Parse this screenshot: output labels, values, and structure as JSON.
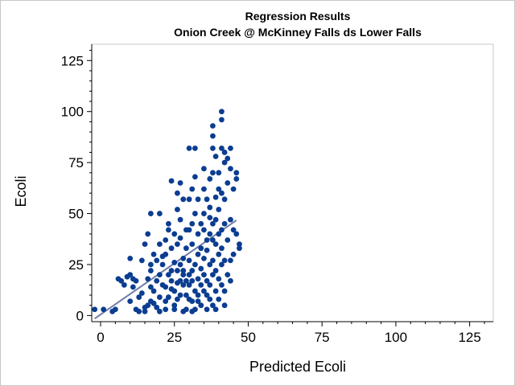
{
  "chart_data": {
    "type": "scatter",
    "title": "Regression Results",
    "subtitle": "Onion Creek @ McKinney Falls ds Lower Falls",
    "xlabel": "Predicted Ecoli",
    "ylabel": "Ecoli",
    "xlim": [
      -3,
      133
    ],
    "ylim": [
      -3,
      133
    ],
    "xticks": [
      0,
      25,
      50,
      75,
      100,
      125
    ],
    "yticks": [
      0,
      25,
      50,
      75,
      100,
      125
    ],
    "grid": false,
    "legend": "none",
    "colors": {
      "points": "#0b3d91",
      "fit_line": "#6e7ea8",
      "axis": "#000000",
      "frame": "#c8c8c8"
    },
    "regression_line": {
      "x": [
        -2,
        46
      ],
      "y": [
        -1.5,
        46.7
      ]
    },
    "series": [
      {
        "points": [
          [
            -2,
            3
          ],
          [
            1,
            3
          ],
          [
            4,
            2
          ],
          [
            5,
            3
          ],
          [
            6,
            18
          ],
          [
            7,
            17
          ],
          [
            8,
            15
          ],
          [
            9,
            19
          ],
          [
            10,
            7
          ],
          [
            10,
            28
          ],
          [
            10,
            20
          ],
          [
            11,
            18
          ],
          [
            11,
            14
          ],
          [
            12,
            3
          ],
          [
            12,
            17
          ],
          [
            13,
            2
          ],
          [
            13,
            9
          ],
          [
            14,
            27
          ],
          [
            14,
            11
          ],
          [
            15,
            4
          ],
          [
            15,
            35
          ],
          [
            15,
            2
          ],
          [
            16,
            5
          ],
          [
            16,
            40
          ],
          [
            16,
            18
          ],
          [
            17,
            14
          ],
          [
            17,
            22
          ],
          [
            17,
            25
          ],
          [
            17,
            7
          ],
          [
            17,
            50
          ],
          [
            18,
            12
          ],
          [
            18,
            30
          ],
          [
            18,
            6
          ],
          [
            19,
            4
          ],
          [
            19,
            17
          ],
          [
            19,
            27
          ],
          [
            20,
            2
          ],
          [
            20,
            50
          ],
          [
            20,
            35
          ],
          [
            20,
            20
          ],
          [
            20,
            9
          ],
          [
            21,
            29
          ],
          [
            21,
            15
          ],
          [
            21,
            25
          ],
          [
            22,
            14
          ],
          [
            22,
            7
          ],
          [
            22,
            37
          ],
          [
            22,
            30
          ],
          [
            22,
            3
          ],
          [
            23,
            20
          ],
          [
            23,
            45
          ],
          [
            23,
            42
          ],
          [
            23,
            9
          ],
          [
            24,
            66
          ],
          [
            24,
            22
          ],
          [
            24,
            17
          ],
          [
            24,
            33
          ],
          [
            24,
            13
          ],
          [
            25,
            12
          ],
          [
            25,
            26
          ],
          [
            25,
            3
          ],
          [
            25,
            40
          ],
          [
            25,
            5
          ],
          [
            26,
            22
          ],
          [
            26,
            16
          ],
          [
            26,
            52
          ],
          [
            26,
            60
          ],
          [
            26,
            35
          ],
          [
            26,
            8
          ],
          [
            27,
            25
          ],
          [
            27,
            65
          ],
          [
            27,
            38
          ],
          [
            27,
            47
          ],
          [
            27,
            17
          ],
          [
            27,
            10
          ],
          [
            28,
            15
          ],
          [
            28,
            57
          ],
          [
            28,
            28
          ],
          [
            28,
            2
          ],
          [
            28,
            20
          ],
          [
            28,
            22
          ],
          [
            29,
            33
          ],
          [
            29,
            42
          ],
          [
            29,
            17
          ],
          [
            29,
            10
          ],
          [
            29,
            3
          ],
          [
            30,
            27
          ],
          [
            30,
            42
          ],
          [
            30,
            57
          ],
          [
            30,
            82
          ],
          [
            30,
            15
          ],
          [
            30,
            8
          ],
          [
            30,
            20
          ],
          [
            31,
            2
          ],
          [
            31,
            35
          ],
          [
            31,
            22
          ],
          [
            31,
            62
          ],
          [
            31,
            45
          ],
          [
            31,
            17
          ],
          [
            31,
            7
          ],
          [
            32,
            50
          ],
          [
            32,
            25
          ],
          [
            32,
            82
          ],
          [
            32,
            68
          ],
          [
            32,
            12
          ],
          [
            32,
            3
          ],
          [
            33,
            40
          ],
          [
            33,
            30
          ],
          [
            33,
            57
          ],
          [
            33,
            18
          ],
          [
            33,
            10
          ],
          [
            33,
            7
          ],
          [
            34,
            33
          ],
          [
            34,
            45
          ],
          [
            34,
            23
          ],
          [
            34,
            15
          ],
          [
            34,
            5
          ],
          [
            35,
            62
          ],
          [
            35,
            72
          ],
          [
            35,
            42
          ],
          [
            35,
            28
          ],
          [
            35,
            20
          ],
          [
            35,
            12
          ],
          [
            35,
            50
          ],
          [
            36,
            57
          ],
          [
            36,
            37
          ],
          [
            36,
            32
          ],
          [
            36,
            17
          ],
          [
            36,
            10
          ],
          [
            36,
            3
          ],
          [
            37,
            48
          ],
          [
            37,
            25
          ],
          [
            37,
            40
          ],
          [
            37,
            15
          ],
          [
            37,
            67
          ],
          [
            37,
            8
          ],
          [
            37,
            53
          ],
          [
            38,
            82
          ],
          [
            38,
            88
          ],
          [
            38,
            93
          ],
          [
            38,
            70
          ],
          [
            38,
            45
          ],
          [
            38,
            37
          ],
          [
            38,
            27
          ],
          [
            38,
            20
          ],
          [
            38,
            5
          ],
          [
            39,
            78
          ],
          [
            39,
            58
          ],
          [
            39,
            47
          ],
          [
            39,
            35
          ],
          [
            39,
            22
          ],
          [
            39,
            12
          ],
          [
            39,
            3
          ],
          [
            40,
            52
          ],
          [
            40,
            40
          ],
          [
            40,
            30
          ],
          [
            40,
            18
          ],
          [
            40,
            8
          ],
          [
            40,
            70
          ],
          [
            40,
            62
          ],
          [
            41,
            100
          ],
          [
            41,
            96
          ],
          [
            41,
            82
          ],
          [
            41,
            60
          ],
          [
            41,
            42
          ],
          [
            41,
            33
          ],
          [
            41,
            25
          ],
          [
            41,
            15
          ],
          [
            42,
            80
          ],
          [
            42,
            75
          ],
          [
            42,
            57
          ],
          [
            42,
            45
          ],
          [
            42,
            27
          ],
          [
            42,
            12
          ],
          [
            42,
            5
          ],
          [
            43,
            77
          ],
          [
            43,
            65
          ],
          [
            43,
            37
          ],
          [
            43,
            20
          ],
          [
            44,
            82
          ],
          [
            44,
            72
          ],
          [
            44,
            47
          ],
          [
            44,
            27
          ],
          [
            44,
            17
          ],
          [
            45,
            62
          ],
          [
            45,
            42
          ],
          [
            45,
            30
          ],
          [
            46,
            70
          ],
          [
            46,
            40
          ],
          [
            46,
            67
          ],
          [
            47,
            35
          ],
          [
            47,
            33
          ]
        ]
      }
    ]
  }
}
